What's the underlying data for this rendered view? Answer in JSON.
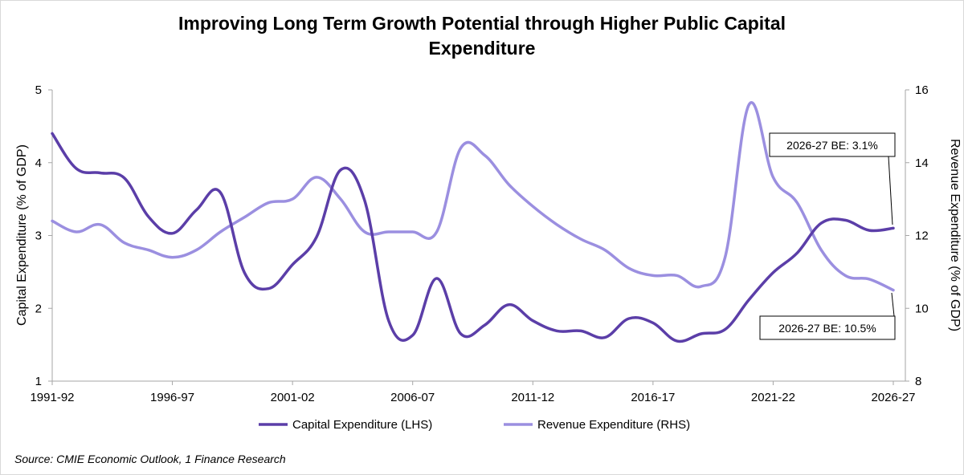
{
  "chart_data": {
    "type": "line",
    "title": "Improving Long Term Growth Potential through Higher Public Capital Expenditure",
    "title_lines": [
      "Improving Long Term Growth Potential through Higher Public Capital",
      "Expenditure"
    ],
    "ylabel_left": "Capital Expenditure   (% of GDP)",
    "ylabel_right": "Revenue Expenditure (% of GDP)",
    "ylim_left": [
      1,
      5
    ],
    "ylim_right": [
      8,
      16
    ],
    "yticks_left": [
      "1",
      "2",
      "3",
      "4",
      "5"
    ],
    "yticks_right": [
      "8",
      "10",
      "12",
      "14",
      "16"
    ],
    "x": [
      "1991-92",
      "1992-93",
      "1993-94",
      "1994-95",
      "1995-96",
      "1996-97",
      "1997-98",
      "1998-99",
      "1999-00",
      "2000-01",
      "2001-02",
      "2002-03",
      "2003-04",
      "2004-05",
      "2005-06",
      "2006-07",
      "2007-08",
      "2008-09",
      "2009-10",
      "2010-11",
      "2011-12",
      "2012-13",
      "2013-14",
      "2014-15",
      "2015-16",
      "2016-17",
      "2017-18",
      "2018-19",
      "2019-20",
      "2020-21",
      "2021-22",
      "2022-23",
      "2023-24",
      "2024-25",
      "2025-26",
      "2026-27"
    ],
    "xticks": [
      "1991-92",
      "1996-97",
      "2001-02",
      "2006-07",
      "2011-12",
      "2016-17",
      "2021-22",
      "2026-27"
    ],
    "grid": false,
    "legend_position": "bottom",
    "series": [
      {
        "name": "Capital Expenditure (LHS)",
        "axis": "left",
        "color": "#5b3ea8",
        "values": [
          4.4,
          3.92,
          3.86,
          3.79,
          3.26,
          3.03,
          3.35,
          3.59,
          2.49,
          2.27,
          2.6,
          2.98,
          3.9,
          3.48,
          1.83,
          1.63,
          2.41,
          1.65,
          1.77,
          2.05,
          1.83,
          1.69,
          1.69,
          1.6,
          1.86,
          1.8,
          1.55,
          1.65,
          1.71,
          2.12,
          2.49,
          2.76,
          3.17,
          3.21,
          3.07,
          3.1
        ]
      },
      {
        "name": "Revenue Expenditure (RHS)",
        "axis": "right",
        "color": "#9b8fe0",
        "values": [
          12.4,
          12.1,
          12.3,
          11.8,
          11.6,
          11.4,
          11.6,
          12.1,
          12.5,
          12.9,
          13.0,
          13.6,
          13.0,
          12.1,
          12.1,
          12.1,
          12.1,
          14.4,
          14.2,
          13.4,
          12.8,
          12.3,
          11.9,
          11.6,
          11.1,
          10.9,
          10.9,
          10.6,
          11.4,
          15.6,
          13.6,
          12.9,
          11.6,
          10.9,
          10.8,
          10.5
        ]
      }
    ],
    "annotations": [
      {
        "text": "2026-27 BE: 3.1%",
        "series": "Capital Expenditure (LHS)"
      },
      {
        "text": "2026-27 BE: 10.5%",
        "series": "Revenue Expenditure (RHS)"
      }
    ]
  },
  "source": "Source: CMIE Economic Outlook, 1 Finance Research"
}
